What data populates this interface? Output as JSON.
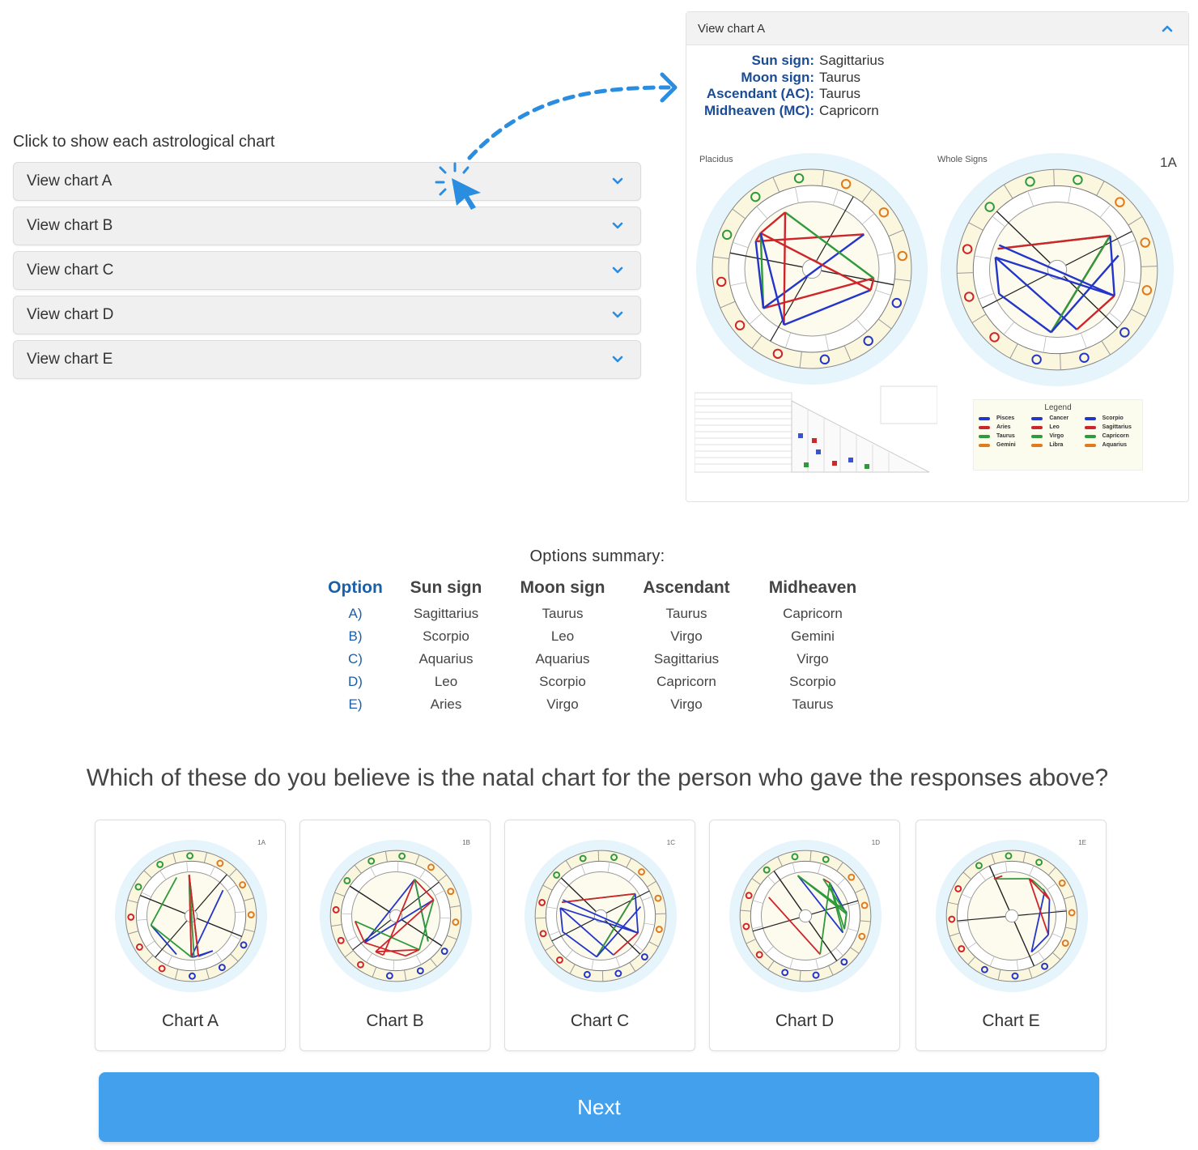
{
  "prompt": "Click to show each astrological chart",
  "accordion": [
    {
      "label": "View chart A"
    },
    {
      "label": "View chart B"
    },
    {
      "label": "View chart C"
    },
    {
      "label": "View chart D"
    },
    {
      "label": "View chart E"
    }
  ],
  "panel": {
    "title": "View chart A",
    "signs": [
      {
        "key": "Sun sign:",
        "value": "Sagittarius"
      },
      {
        "key": "Moon sign:",
        "value": "Taurus"
      },
      {
        "key": "Ascendant (AC):",
        "value": "Taurus"
      },
      {
        "key": "Midheaven (MC):",
        "value": "Capricorn"
      }
    ],
    "left_chart_caption": "Placidus",
    "right_chart_caption": "Whole Signs",
    "code": "1A",
    "legend_title": "Legend",
    "legend": [
      "Pisces",
      "Cancer",
      "Scorpio",
      "Aries",
      "Leo",
      "Sagittarius",
      "Taurus",
      "Virgo",
      "Capricorn",
      "Gemini",
      "Libra",
      "Aquarius"
    ]
  },
  "summary": {
    "title": "Options summary:",
    "headers": [
      "Option",
      "Sun sign",
      "Moon sign",
      "Ascendant",
      "Midheaven"
    ],
    "rows": [
      [
        "A)",
        "Sagittarius",
        "Taurus",
        "Taurus",
        "Capricorn"
      ],
      [
        "B)",
        "Scorpio",
        "Leo",
        "Virgo",
        "Gemini"
      ],
      [
        "C)",
        "Aquarius",
        "Aquarius",
        "Sagittarius",
        "Virgo"
      ],
      [
        "D)",
        "Leo",
        "Scorpio",
        "Capricorn",
        "Scorpio"
      ],
      [
        "E)",
        "Aries",
        "Virgo",
        "Virgo",
        "Taurus"
      ]
    ]
  },
  "question": "Which of these do you believe is the natal chart for the person who gave the  responses above?",
  "cards": [
    {
      "name": "Chart A",
      "code": "1A"
    },
    {
      "name": "Chart B",
      "code": "1B"
    },
    {
      "name": "Chart C",
      "code": "1C"
    },
    {
      "name": "Chart D",
      "code": "1D"
    },
    {
      "name": "Chart E",
      "code": "1E"
    }
  ],
  "next_label": "Next",
  "colors": {
    "accent": "#42a0ed",
    "label_blue": "#1a4c95",
    "wheel_glow": "#e6f4fc",
    "aspect_red": "#d0242b",
    "aspect_blue": "#2336c9",
    "aspect_green": "#2e9a3a"
  }
}
